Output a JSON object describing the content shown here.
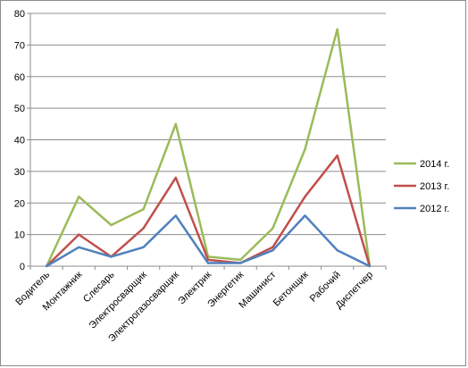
{
  "chart_data": {
    "type": "line",
    "title": "",
    "xlabel": "",
    "ylabel": "",
    "categories": [
      "Водитель",
      "Монтажник",
      "Слесарь",
      "Электросварщик",
      "Электрогазосварщик",
      "Электрик",
      "Энергетик",
      "Машинист",
      "Бетонщик",
      "Рабочий",
      "Диспетчер"
    ],
    "ylim": [
      0,
      80
    ],
    "yticks": [
      0,
      10,
      20,
      30,
      40,
      50,
      60,
      70,
      80
    ],
    "grid": true,
    "legend_position": "right",
    "series": [
      {
        "name": "2014 г.",
        "color": "#9bbb59",
        "values": [
          0,
          22,
          13,
          18,
          45,
          3,
          2,
          12,
          37,
          75,
          0
        ]
      },
      {
        "name": "2013 г.",
        "color": "#c0504d",
        "values": [
          0,
          10,
          3,
          12,
          28,
          2,
          1,
          6,
          22,
          35,
          0
        ]
      },
      {
        "name": "2012 г.",
        "color": "#4f81bd",
        "values": [
          0,
          6,
          3,
          6,
          16,
          1,
          1,
          5,
          16,
          5,
          0
        ]
      }
    ]
  }
}
